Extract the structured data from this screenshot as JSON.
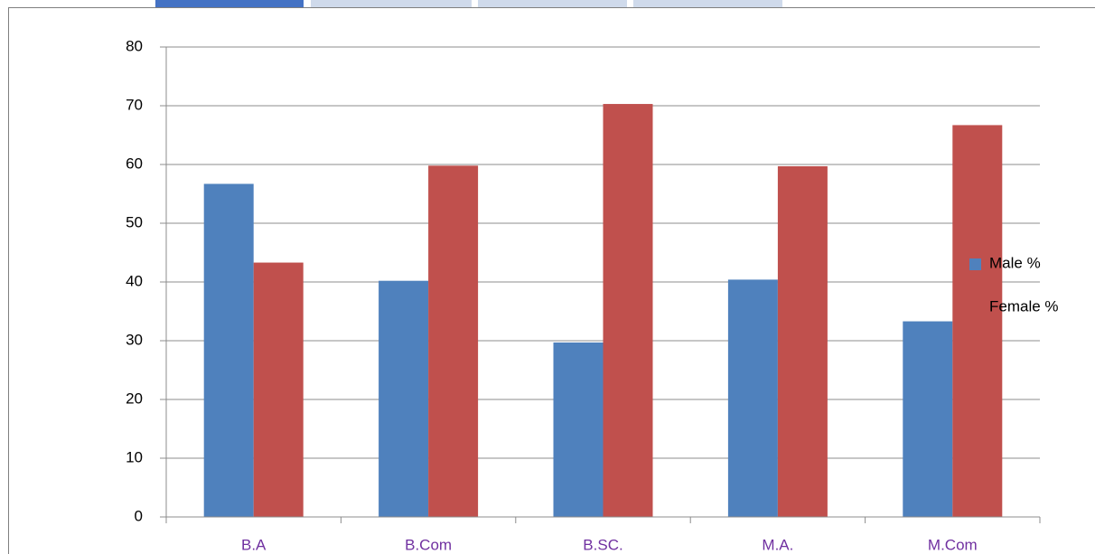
{
  "chart_data": {
    "type": "bar",
    "categories": [
      "B.A",
      "B.Com",
      "B.SC.",
      "M.A.",
      "M.Com"
    ],
    "series": [
      {
        "name": "Male %",
        "color": "#4f81bd",
        "values": [
          56.7,
          40.2,
          29.7,
          40.4,
          33.3
        ]
      },
      {
        "name": "Female %",
        "color": "#c0504d",
        "values": [
          43.3,
          59.8,
          70.3,
          59.7,
          66.7
        ]
      }
    ],
    "ylim": [
      0,
      80
    ],
    "yticks": [
      0,
      10,
      20,
      30,
      40,
      50,
      60,
      70,
      80
    ],
    "grid": true,
    "legend": "right"
  }
}
